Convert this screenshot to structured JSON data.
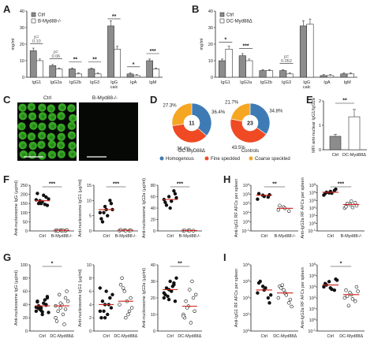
{
  "chart_data": [
    {
      "panel": "A",
      "type": "bar",
      "ylabel": "mg/ml",
      "ylim": [
        0,
        40
      ],
      "yticks": [
        0,
        10,
        20,
        30,
        40
      ],
      "categories": [
        "IgG1",
        "IgG2a",
        "IgG2b",
        "IgG3",
        "IgG calc",
        "IgA",
        "IgM"
      ],
      "series": [
        {
          "name": "Ctrl",
          "values": [
            16,
            7,
            5,
            5,
            31,
            2,
            10
          ]
        },
        {
          "name": "B-Myd88-/-",
          "values": [
            10,
            5,
            2,
            2,
            17,
            1,
            5
          ]
        }
      ],
      "significance": [
        "p=0.10",
        "p=0.06",
        "**",
        "**",
        "**",
        "*",
        "***"
      ]
    },
    {
      "panel": "B",
      "type": "bar",
      "ylabel": "mg/ml",
      "ylim": [
        0,
        40
      ],
      "yticks": [
        0,
        10,
        20,
        30,
        40
      ],
      "categories": [
        "IgG1",
        "IgG2a",
        "IgG2b",
        "IgG3",
        "IgG calc",
        "IgA",
        "IgM"
      ],
      "series": [
        {
          "name": "Ctrl",
          "values": [
            10,
            13,
            4,
            4,
            31,
            1,
            2
          ]
        },
        {
          "name": "DC-Myd88Δ",
          "values": [
            17,
            10,
            4,
            2,
            32,
            1,
            2
          ]
        }
      ],
      "significance": [
        "*",
        "***",
        "",
        "p=0.052",
        "",
        "",
        ""
      ]
    },
    {
      "panel": "D",
      "type": "pie",
      "legend": [
        "Homogenous",
        "Fine speckled",
        "Coarse speckled"
      ],
      "colors": [
        "#3e7bb5",
        "#ef4a24",
        "#f5a623"
      ],
      "charts": [
        {
          "label": "DC-MyD88Δ",
          "center": "11",
          "values": [
            36.4,
            36.4,
            27.3
          ]
        },
        {
          "label": "Controls",
          "center": "23",
          "values": [
            34.8,
            43.5,
            21.7
          ]
        }
      ]
    },
    {
      "panel": "E",
      "type": "bar",
      "ylabel": "MFI anti-nuclear IgG1/IgG2a",
      "ylim": [
        0,
        2
      ],
      "yticks": [
        0,
        1,
        2
      ],
      "categories": [
        "Ctrl",
        "DC-Myd88Δ"
      ],
      "values": [
        0.55,
        1.35
      ],
      "errors": [
        0.08,
        0.3
      ],
      "significance": "**"
    },
    {
      "panel": "F",
      "type": "scatter",
      "plots": [
        {
          "ylabel": "Anti-nucleosome IgG (µg/ml)",
          "ylim": [
            0,
            250
          ],
          "yticks": [
            0,
            50,
            100,
            150,
            200,
            250
          ],
          "categories": [
            "Ctrl",
            "B-Myd88-/-"
          ],
          "groups": [
            [
              170,
              150,
              185,
              205,
              160,
              140,
              150,
              195,
              175,
              165,
              145
            ],
            [
              2,
              4,
              1,
              3,
              2,
              5,
              1,
              3
            ]
          ],
          "sig": "***"
        },
        {
          "ylabel": "Anti-nucleosome IgG1 (µg/ml)",
          "ylim": [
            0,
            15
          ],
          "yticks": [
            0,
            5,
            10,
            15
          ],
          "categories": [
            "Ctrl",
            "B-Myd88-/-"
          ],
          "groups": [
            [
              6,
              8,
              10,
              4,
              7,
              9,
              3,
              5,
              7,
              6
            ],
            [
              0.1,
              0.2,
              0.1,
              0.3,
              0.1,
              0.2
            ]
          ],
          "sig": "***"
        },
        {
          "ylabel": "Anti-nucleosome IgG2a (µg/ml)",
          "ylim": [
            0,
            80
          ],
          "yticks": [
            0,
            20,
            40,
            60,
            80
          ],
          "categories": [
            "Ctrl",
            "B-Myd88-/-"
          ],
          "groups": [
            [
              55,
              60,
              70,
              50,
              40,
              65,
              45,
              52,
              58
            ],
            [
              0.5,
              1,
              0.5,
              1,
              0.8
            ]
          ],
          "sig": "***"
        }
      ]
    },
    {
      "panel": "G",
      "type": "scatter",
      "plots": [
        {
          "ylabel": "Anti-nucleosome IgG (µg/ml)",
          "ylim": [
            0,
            100
          ],
          "yticks": [
            0,
            20,
            40,
            60,
            80,
            100
          ],
          "categories": [
            "Ctrl",
            "DC-Myd88Δ"
          ],
          "groups": [
            [
              30,
              35,
              40,
              45,
              25,
              50,
              38,
              42,
              28,
              33,
              47,
              36,
              31,
              39,
              44,
              29,
              52,
              34
            ],
            [
              20,
              35,
              50,
              15,
              40,
              60,
              30,
              25,
              45,
              55,
              10,
              38,
              42,
              33
            ]
          ],
          "sig": "*"
        },
        {
          "ylabel": "Anti-nucleosome IgG1 (µg/ml)",
          "ylim": [
            0,
            10
          ],
          "yticks": [
            0,
            2,
            4,
            6,
            8,
            10
          ],
          "categories": [
            "Ctrl",
            "DC-Myd88Δ"
          ],
          "groups": [
            [
              3,
              4,
              5,
              2,
              6,
              3.5,
              4.5,
              2.5,
              5.5,
              3,
              4,
              6.5,
              2,
              5
            ],
            [
              4,
              6,
              3,
              7,
              2,
              5,
              8,
              4.5,
              3.5,
              6.5,
              2.5
            ]
          ],
          "sig": ""
        },
        {
          "ylabel": "Anti-nucleosome IgG2a (µg/ml)",
          "ylim": [
            0,
            40
          ],
          "yticks": [
            0,
            10,
            20,
            30,
            40
          ],
          "categories": [
            "Ctrl",
            "DC-Myd88Δ"
          ],
          "groups": [
            [
              20,
              25,
              28,
              22,
              30,
              18,
              26,
              24,
              32,
              21,
              27,
              23,
              19,
              29
            ],
            [
              10,
              15,
              20,
              8,
              25,
              12,
              18,
              5,
              22,
              14,
              30,
              9
            ]
          ],
          "sig": "**"
        }
      ]
    },
    {
      "panel": "H",
      "type": "scatter",
      "yscale": "log",
      "plots": [
        {
          "ylabel": "Anti-IgG1 RF AFCs per spleen",
          "ylim": [
            0.1,
            10000
          ],
          "yticks": [
            "10^-1",
            "10^0",
            "10^1",
            "10^2",
            "10^3",
            "10^4"
          ],
          "categories": [
            "Ctrl",
            "B-Myd88-/-"
          ],
          "groups": [
            [
              300,
              800,
              500,
              1200,
              600,
              900
            ],
            [
              20,
              40,
              15,
              60,
              30
            ]
          ],
          "sig": "**"
        },
        {
          "ylabel": "Anti-IgG2a RF AFCs per spleen",
          "ylim": [
            0.1,
            100000
          ],
          "yticks": [
            "10^-1",
            "10^0",
            "10^1",
            "10^2",
            "10^3",
            "10^4",
            "10^5"
          ],
          "categories": [
            "Ctrl",
            "B-Myd88-/-"
          ],
          "groups": [
            [
              5000,
              10000,
              20000,
              8000,
              15000,
              30000,
              12000,
              9000
            ],
            [
              100,
              300,
              500,
              150,
              800,
              200,
              400,
              120
            ]
          ],
          "sig": "***"
        }
      ]
    },
    {
      "panel": "I",
      "type": "scatter",
      "yscale": "log",
      "plots": [
        {
          "ylabel": "Anti-IgG1 RF AFCs per spleen",
          "ylim": [
            1,
            10000
          ],
          "yticks": [
            "10^0",
            "10^1",
            "10^2",
            "10^3",
            "10^4"
          ],
          "categories": [
            "Ctrl",
            "DC-Myd88Δ"
          ],
          "groups": [
            [
              200,
              500,
              100,
              800,
              300,
              50,
              1000,
              400,
              150
            ],
            [
              100,
              300,
              50,
              500,
              200,
              80,
              400,
              150,
              30,
              600
            ]
          ],
          "sig": ""
        },
        {
          "ylabel": "Anti-IgG2a RF AFCs per spleen",
          "ylim": [
            0.1,
            100000
          ],
          "yticks": [
            "10^-1",
            "10^0",
            "10^1",
            "10^2",
            "10^3",
            "10^4",
            "10^5"
          ],
          "categories": [
            "Ctrl",
            "DC-Myd88Δ"
          ],
          "groups": [
            [
              1000,
              3000,
              500,
              2000,
              800,
              5000,
              1500,
              600,
              4000
            ],
            [
              100,
              300,
              50,
              500,
              200,
              1000,
              150,
              80,
              400,
              20
            ]
          ],
          "sig": "*"
        }
      ]
    }
  ],
  "panel_c": {
    "label": "C",
    "left": "Ctrl",
    "right": "B-Myd88-/-",
    "colors": {
      "bg": "#050805",
      "cell": "#3fbf2a",
      "cellCore": "#1e7a16"
    }
  },
  "colors": {
    "ctrl": "#8c8c8c",
    "ko": "#ffffff",
    "median": "#d0201a",
    "pie_homog": "#3e7bb5",
    "pie_fine": "#ef4a24",
    "pie_coarse": "#f5a623"
  }
}
